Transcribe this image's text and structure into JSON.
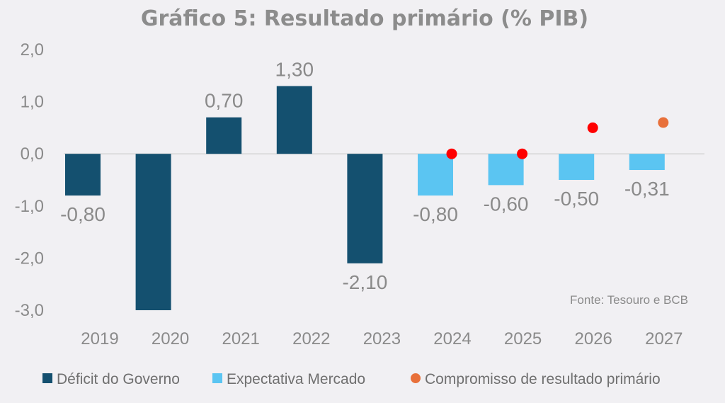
{
  "chart_data": {
    "type": "bar",
    "title": "Gráfico 5: Resultado primário (% PIB)",
    "categories": [
      "2019",
      "2020",
      "2021",
      "2022",
      "2023",
      "2024",
      "2025",
      "2026",
      "2027"
    ],
    "series": [
      {
        "name": "Déficit do Governo",
        "color": "#14506f",
        "kind": "bar",
        "values": [
          -0.8,
          -3.0,
          0.7,
          1.3,
          -2.1,
          null,
          null,
          null,
          null
        ],
        "labels": [
          "-0,80",
          "",
          "0,70",
          "1,30",
          "-2,10",
          "",
          "",
          "",
          ""
        ]
      },
      {
        "name": "Expectativa Mercado",
        "color": "#5bc5f2",
        "kind": "bar",
        "values": [
          null,
          null,
          null,
          null,
          null,
          -0.8,
          -0.6,
          -0.5,
          -0.31
        ],
        "labels": [
          "",
          "",
          "",
          "",
          "",
          "-0,80",
          "-0,60",
          "-0,50",
          "-0,31"
        ]
      },
      {
        "name": "Compromisso de resultado primário",
        "color": "#e8703a",
        "kind": "point",
        "values": [
          null,
          null,
          null,
          null,
          null,
          0.0,
          0.0,
          0.5,
          0.6
        ],
        "point_colors": [
          null,
          null,
          null,
          null,
          null,
          "#ff0000",
          "#ff0000",
          "#ff0000",
          "#e8703a"
        ]
      }
    ],
    "yticks": [
      "2,0",
      "1,0",
      "0,0",
      "-1,0",
      "-2,0",
      "-3,0"
    ],
    "ytick_values": [
      2,
      1,
      0,
      -1,
      -2,
      -3
    ],
    "ylim": [
      -3,
      2
    ],
    "grid": false,
    "legend_position": "bottom",
    "source": "Fonte: Tesouro e BCB"
  }
}
